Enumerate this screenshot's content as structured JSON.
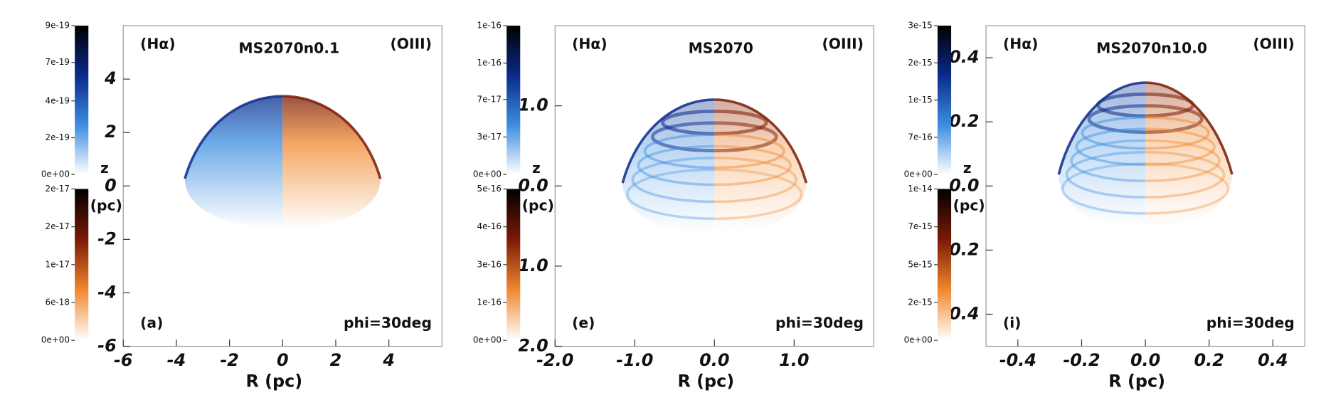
{
  "chart_data": [
    {
      "type": "image",
      "title": "MS2070n0.1",
      "left_label": "(Hα)",
      "right_label": "(OIII)",
      "panel_label": "(a)",
      "annotation": "phi=30deg",
      "xlabel": "R (pc)",
      "ylabel": "z",
      "ylabel_unit": "(pc)",
      "xlim": [
        -6,
        6
      ],
      "xticks": [
        -6,
        -4,
        -2,
        0,
        2,
        4
      ],
      "ylim": [
        -6,
        6
      ],
      "yticks": [
        -6,
        -4,
        -2,
        0,
        2,
        4
      ],
      "colorbars": [
        {
          "clim": [
            0,
            8.9e-19
          ],
          "colors": [
            "#ffffff",
            "#3b8de0",
            "#0b2a8a",
            "#000000"
          ],
          "ticks": [
            {
              "value": 0,
              "label": "0e+00"
            },
            {
              "value": 2.2e-19,
              "label": "2e-19"
            },
            {
              "value": 4.4e-19,
              "label": "4e-19"
            },
            {
              "value": 6.7e-19,
              "label": "7e-19"
            },
            {
              "value": 8.9e-19,
              "label": "9e-19"
            }
          ]
        },
        {
          "clim": [
            0,
            2.4e-17
          ],
          "colors": [
            "#ffffff",
            "#f0882e",
            "#7a1a05",
            "#000000"
          ],
          "ticks": [
            {
              "value": 0,
              "label": "0e+00"
            },
            {
              "value": 6e-18,
              "label": "6e-18"
            },
            {
              "value": 1.2e-17,
              "label": "1e-17"
            },
            {
              "value": 1.8e-17,
              "label": "2e-17"
            },
            {
              "value": 2.4e-17,
              "label": "2e-17"
            }
          ]
        }
      ]
    },
    {
      "type": "image",
      "title": "MS2070",
      "left_label": "(Hα)",
      "right_label": "(OIII)",
      "panel_label": "(e)",
      "annotation": "phi=30deg",
      "xlabel": "R (pc)",
      "ylabel": "z",
      "ylabel_unit": "(pc)",
      "xlim": [
        -2,
        2
      ],
      "xticks": [
        {
          "value": -2,
          "label": "-2.0"
        },
        {
          "value": -1,
          "label": "-1.0"
        },
        {
          "value": 0,
          "label": "0.0"
        },
        {
          "value": 1,
          "label": "1.0"
        }
      ],
      "ylim": [
        -2,
        2
      ],
      "yticks": [
        {
          "value": -2,
          "label": "2.0"
        },
        {
          "value": -1,
          "label": "1.0"
        },
        {
          "value": 0,
          "label": "0.0"
        },
        {
          "value": 1,
          "label": "1.0"
        }
      ],
      "colorbars": [
        {
          "clim": [
            0,
            1.35e-16
          ],
          "colors": [
            "#ffffff",
            "#3b8de0",
            "#0b2a8a",
            "#000000"
          ],
          "ticks": [
            {
              "value": 0,
              "label": "0e+00"
            },
            {
              "value": 3.4e-17,
              "label": "3e-17"
            },
            {
              "value": 6.8e-17,
              "label": "7e-17"
            },
            {
              "value": 1.01e-16,
              "label": "1e-16"
            },
            {
              "value": 1.35e-16,
              "label": "1e-16"
            }
          ]
        },
        {
          "clim": [
            0,
            5.4e-16
          ],
          "colors": [
            "#ffffff",
            "#f0882e",
            "#7a1a05",
            "#000000"
          ],
          "ticks": [
            {
              "value": 0,
              "label": "0e+00"
            },
            {
              "value": 1.35e-16,
              "label": "1e-16"
            },
            {
              "value": 2.7e-16,
              "label": "3e-16"
            },
            {
              "value": 4.05e-16,
              "label": "4e-16"
            },
            {
              "value": 5.4e-16,
              "label": "5e-16"
            }
          ]
        }
      ]
    },
    {
      "type": "image",
      "title": "MS2070n10.0",
      "left_label": "(Hα)",
      "right_label": "(OIII)",
      "panel_label": "(i)",
      "annotation": "phi=30deg",
      "xlabel": "R (pc)",
      "ylabel": "z",
      "ylabel_unit": "(pc)",
      "xlim": [
        -0.5,
        0.5
      ],
      "xticks": [
        -0.4,
        -0.2,
        {
          "value": 0,
          "label": "0.0"
        },
        0.2,
        0.4
      ],
      "ylim": [
        -0.5,
        0.5
      ],
      "yticks": [
        {
          "value": -0.4,
          "label": "0.4"
        },
        {
          "value": -0.2,
          "label": "0.2"
        },
        {
          "value": 0,
          "label": "0.0"
        },
        0.2,
        0.4
      ],
      "colorbars": [
        {
          "clim": [
            0,
            2.8e-15
          ],
          "colors": [
            "#ffffff",
            "#3b8de0",
            "#0b2a8a",
            "#000000"
          ],
          "ticks": [
            {
              "value": 0,
              "label": "0e+00"
            },
            {
              "value": 7e-16,
              "label": "7e-16"
            },
            {
              "value": 1.4e-15,
              "label": "1e-15"
            },
            {
              "value": 2.1e-15,
              "label": "2e-15"
            },
            {
              "value": 2.8e-15,
              "label": "3e-15"
            }
          ]
        },
        {
          "clim": [
            0,
            9.6e-15
          ],
          "colors": [
            "#ffffff",
            "#f0882e",
            "#7a1a05",
            "#000000"
          ],
          "ticks": [
            {
              "value": 0,
              "label": "0e+00"
            },
            {
              "value": 2.4e-15,
              "label": "2e-15"
            },
            {
              "value": 4.8e-15,
              "label": "5e-15"
            },
            {
              "value": 7.2e-15,
              "label": "7e-15"
            },
            {
              "value": 9.6e-15,
              "label": "1e-14"
            }
          ]
        }
      ]
    }
  ]
}
